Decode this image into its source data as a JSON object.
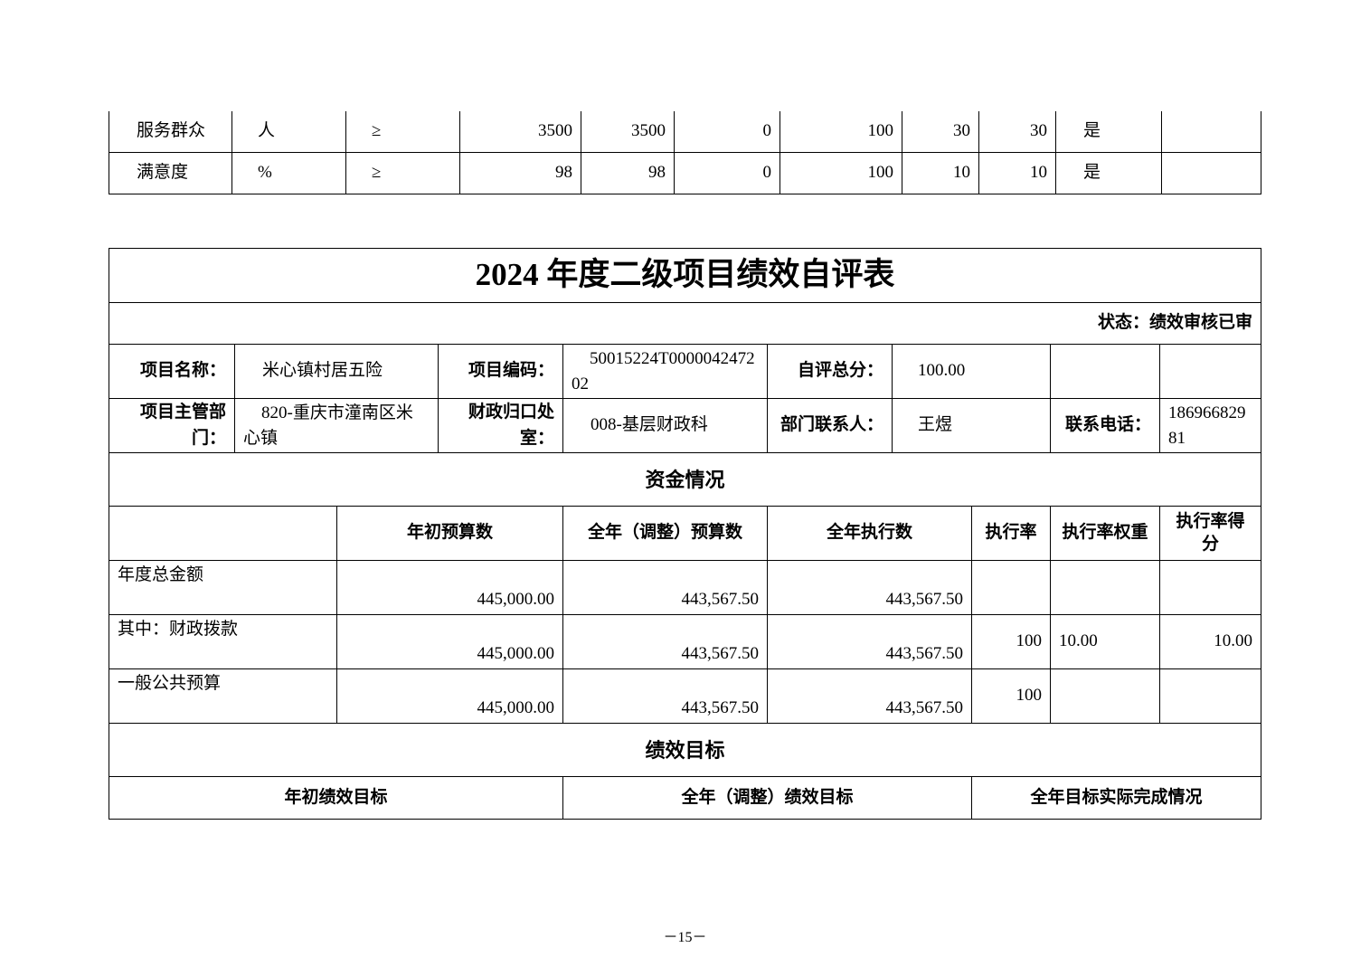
{
  "top_table": {
    "rows": [
      [
        "服务群众",
        "人",
        "≥",
        "3500",
        "3500",
        "0",
        "100",
        "30",
        "30",
        "是",
        ""
      ],
      [
        "满意度",
        "%",
        "≥",
        "98",
        "98",
        "0",
        "100",
        "10",
        "10",
        "是",
        ""
      ]
    ]
  },
  "form": {
    "title": "2024 年度二级项目绩效自评表",
    "status": "状态：绩效审核已审",
    "info": {
      "project_name_label": "项目名称：",
      "project_name": "米心镇村居五险",
      "project_code_label": "项目编码：",
      "project_code": "50015224T000004247202",
      "score_label": "自评总分：",
      "score": "100.00",
      "dept_label": "项目主管部门：",
      "dept": "820-重庆市潼南区米心镇",
      "finance_label": "财政归口处室：",
      "finance": "008-基层财政科",
      "contact_label": "部门联系人：",
      "contact": "王煜",
      "phone_label": "联系电话：",
      "phone": "18696682981"
    },
    "funds": {
      "section": "资金情况",
      "headers": [
        "",
        "年初预算数",
        "全年（调整）预算数",
        "全年执行数",
        "执行率",
        "执行率权重",
        "执行率得分"
      ],
      "rows": [
        [
          "年度总金额",
          "445,000.00",
          "443,567.50",
          "443,567.50",
          "",
          "",
          ""
        ],
        [
          "其中：财政拨款",
          "445,000.00",
          "443,567.50",
          "443,567.50",
          "100",
          "10.00",
          "10.00"
        ],
        [
          "一般公共预算",
          "445,000.00",
          "443,567.50",
          "443,567.50",
          "100",
          "",
          ""
        ]
      ]
    },
    "goals": {
      "section": "绩效目标",
      "headers": [
        "年初绩效目标",
        "全年（调整）绩效目标",
        "全年目标实际完成情况"
      ]
    }
  },
  "page_number": "－15－"
}
